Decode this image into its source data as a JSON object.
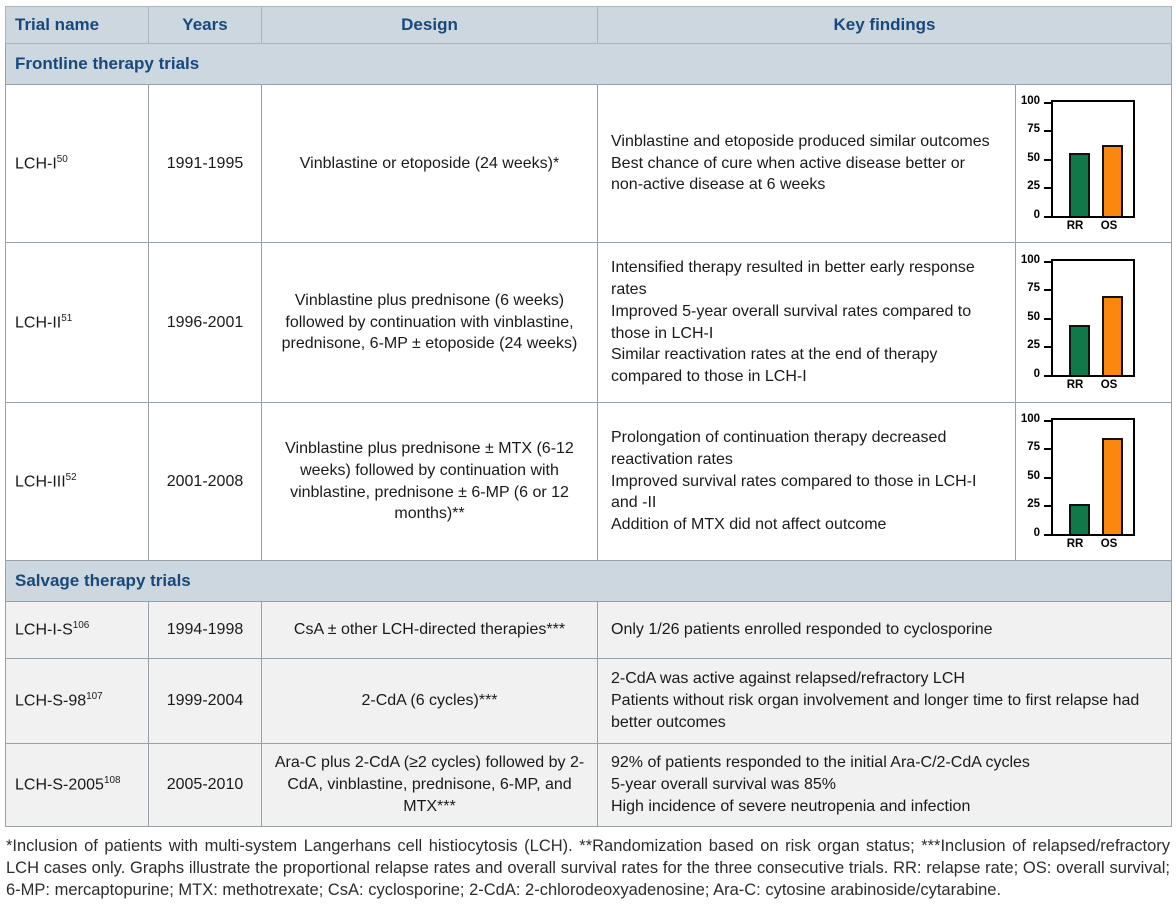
{
  "table": {
    "columns": [
      "Trial name",
      "Years",
      "Design",
      "Key findings"
    ],
    "sections": [
      {
        "title": "Frontline therapy trials",
        "rows": [
          {
            "trial": "LCH-I",
            "ref": "50",
            "years": "1991-1995",
            "design": "Vinblastine or etoposide (24 weeks)*",
            "findings": [
              "Vinblastine and etoposide produced similar outcomes",
              "Best chance of cure when active disease better or non-active disease at 6 weeks"
            ]
          },
          {
            "trial": "LCH-II",
            "ref": "51",
            "years": "1996-2001",
            "design": "Vinblastine plus prednisone (6 weeks) followed by continuation with vinblastine, prednisone, 6-MP ± etoposide (24 weeks)",
            "findings": [
              "Intensified therapy resulted in better early response rates",
              "Improved 5-year overall survival rates compared to those in LCH-I",
              "Similar reactivation rates at the end of therapy compared to those in LCH-I"
            ]
          },
          {
            "trial": "LCH-III",
            "ref": "52",
            "years": "2001-2008",
            "design": "Vinblastine plus prednisone ± MTX (6-12 weeks) followed by continuation with vinblastine, prednisone ± 6-MP (6 or 12 months)**",
            "findings": [
              "Prolongation of continuation therapy decreased reactivation rates",
              "Improved survival rates compared to those in LCH-I and -II",
              "Addition of MTX did not affect outcome"
            ]
          }
        ]
      },
      {
        "title": "Salvage therapy trials",
        "rows": [
          {
            "trial": "LCH-I-S",
            "ref": "106",
            "years": "1994-1998",
            "design": "CsA ± other LCH-directed therapies***",
            "findings": [
              "Only 1/26 patients enrolled responded to cyclosporine"
            ]
          },
          {
            "trial": "LCH-S-98",
            "ref": "107",
            "years": "1999-2004",
            "design": "2-CdA (6 cycles)***",
            "findings": [
              "2-CdA was active against relapsed/refractory LCH",
              "Patients without risk organ involvement and longer time to first relapse had better outcomes"
            ]
          },
          {
            "trial": "LCH-S-2005",
            "ref": "108",
            "years": "2005-2010",
            "design": "Ara-C plus 2-CdA (≥2 cycles) followed by 2-CdA, vinblastine, prednisone, 6-MP, and MTX***",
            "findings": [
              "92% of patients responded to the initial Ara-C/2-CdA cycles",
              "5-year overall survival was 85%",
              "High incidence of severe neutropenia and infection"
            ]
          }
        ]
      }
    ]
  },
  "chart_data": [
    {
      "type": "bar",
      "trial": "LCH-I",
      "categories": [
        "RR",
        "OS"
      ],
      "values": [
        55,
        62
      ],
      "ylim": [
        0,
        100
      ],
      "yticks": [
        0,
        25,
        50,
        75,
        100
      ],
      "bar_colors": [
        "#0e7a4a",
        "#fb870f"
      ]
    },
    {
      "type": "bar",
      "trial": "LCH-II",
      "categories": [
        "RR",
        "OS"
      ],
      "values": [
        43,
        69
      ],
      "ylim": [
        0,
        100
      ],
      "yticks": [
        0,
        25,
        50,
        75,
        100
      ],
      "bar_colors": [
        "#0e7a4a",
        "#fb870f"
      ]
    },
    {
      "type": "bar",
      "trial": "LCH-III",
      "categories": [
        "RR",
        "OS"
      ],
      "values": [
        26,
        84
      ],
      "ylim": [
        0,
        100
      ],
      "yticks": [
        0,
        25,
        50,
        75,
        100
      ],
      "bar_colors": [
        "#0e7a4a",
        "#fb870f"
      ]
    }
  ],
  "colors": {
    "header_bg": "#ccd7e0",
    "header_text": "#17497b",
    "salvage_row_bg": "#f1f1f1",
    "bar_green": "#0e7a4a",
    "bar_orange": "#fb870f"
  },
  "footnote": "*Inclusion of patients with multi-system Langerhans cell histiocytosis (LCH). **Randomization based on risk organ status; ***Inclusion of relapsed/refractory LCH cases only. Graphs illustrate the proportional relapse rates and overall survival rates for the three consecutive trials. RR: relapse rate; OS: overall survival; 6-MP: mercaptopurine; MTX: methotrexate; CsA: cyclosporine; 2-CdA: 2-chlorodeoxyadenosine; Ara-C: cytosine arabinoside/cytarabine."
}
